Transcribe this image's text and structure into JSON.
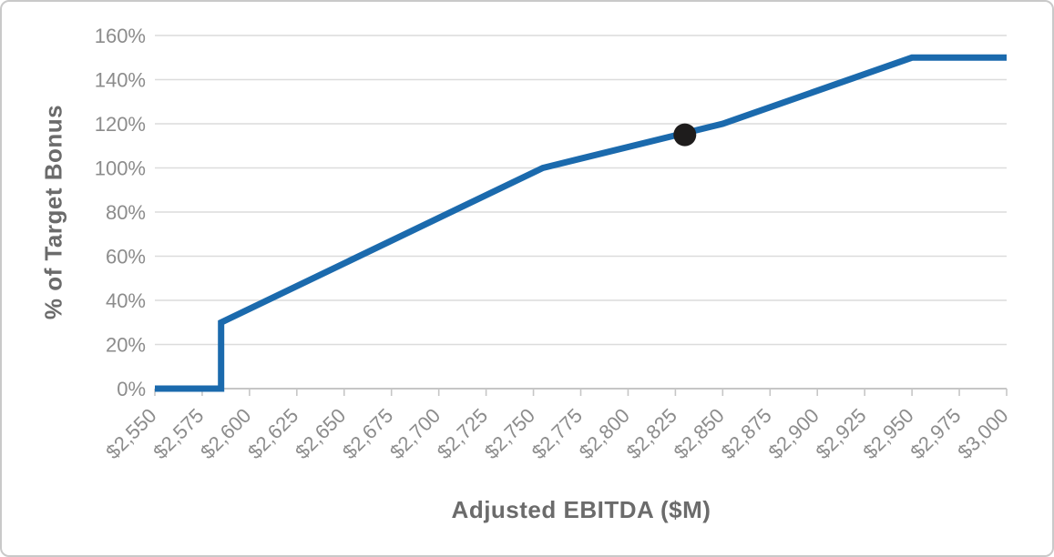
{
  "chart_data": {
    "type": "line",
    "title": "",
    "xlabel": "Adjusted EBITDA ($M)",
    "ylabel": "% of Target Bonus",
    "xlim": [
      2550,
      3000
    ],
    "ylim": [
      0,
      160
    ],
    "grid": "horizontal",
    "legend": "none",
    "x_tick_values": [
      2550,
      2575,
      2600,
      2625,
      2650,
      2675,
      2700,
      2725,
      2750,
      2775,
      2800,
      2825,
      2850,
      2875,
      2900,
      2925,
      2950,
      2975,
      3000
    ],
    "x_tick_labels": [
      "$2,550",
      "$2,575",
      "$2,600",
      "$2,625",
      "$2,650",
      "$2,675",
      "$2,700",
      "$2,725",
      "$2,750",
      "$2,775",
      "$2,800",
      "$2,825",
      "$2,850",
      "$2,875",
      "$2,900",
      "$2,925",
      "$2,950",
      "$2,975",
      "$3,000"
    ],
    "y_tick_values": [
      0,
      20,
      40,
      60,
      80,
      100,
      120,
      140,
      160
    ],
    "y_tick_labels": [
      "0%",
      "20%",
      "40%",
      "60%",
      "80%",
      "100%",
      "120%",
      "140%",
      "160%"
    ],
    "series": [
      {
        "name": "bonus-payout-curve",
        "color": "#1b6aad",
        "points": [
          [
            2550,
            0
          ],
          [
            2585,
            0
          ],
          [
            2585,
            30
          ],
          [
            2755,
            100
          ],
          [
            2850,
            120
          ],
          [
            2950,
            150
          ],
          [
            3000,
            150
          ]
        ]
      }
    ],
    "marker": {
      "name": "current-performance-marker",
      "x": 2830,
      "y": 115,
      "color": "#1e1c1c"
    }
  },
  "colors": {
    "gridline": "#dcdcdc",
    "axis_line": "#c6c6c6",
    "tick_mark": "#c6c6c6",
    "tick_label": "#8c8c8c",
    "axis_title": "#6b6b6b",
    "line": "#1b6aad",
    "marker": "#1e1c1c",
    "frame_border": "#c9c9c9"
  }
}
